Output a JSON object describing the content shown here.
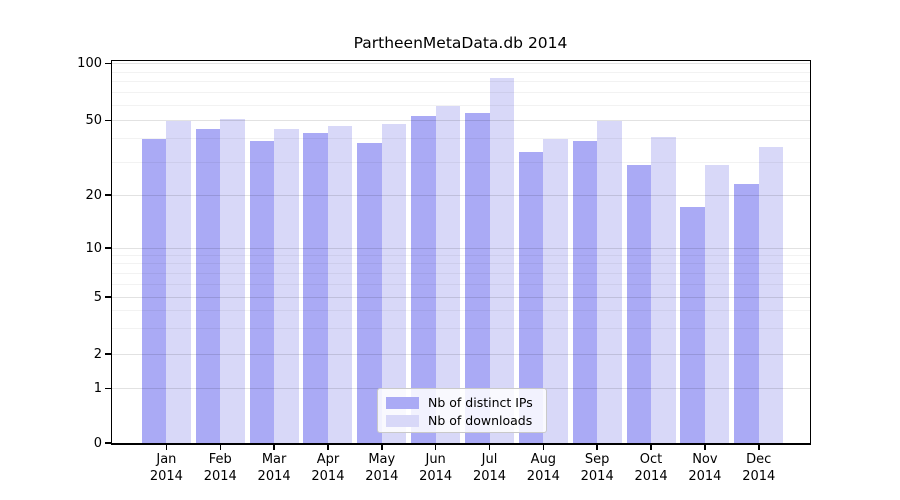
{
  "chart_data": {
    "type": "bar",
    "title": "PartheenMetaData.db 2014",
    "categories": [
      "Jan",
      "Feb",
      "Mar",
      "Apr",
      "May",
      "Jun",
      "Jul",
      "Aug",
      "Sep",
      "Oct",
      "Nov",
      "Dec"
    ],
    "category_year": "2014",
    "series": [
      {
        "name": "Nb of distinct IPs",
        "color": "#aaaaf5",
        "values": [
          40,
          45,
          39,
          43,
          38,
          53,
          55,
          34,
          39,
          29,
          17,
          23
        ]
      },
      {
        "name": "Nb of downloads",
        "color": "#d8d8f8",
        "values": [
          50,
          51,
          45,
          47,
          48,
          60,
          84,
          40,
          50,
          41,
          29,
          36
        ]
      }
    ],
    "xlabel": "",
    "ylabel": "",
    "yticks": [
      0,
      1,
      2,
      5,
      10,
      20,
      50,
      100
    ],
    "ylim": [
      0,
      105
    ],
    "scale": "symlog (log above 1, linear 0-1)",
    "grid": "horizontal major + log-minor gridlines",
    "legend_position": "lower center"
  }
}
